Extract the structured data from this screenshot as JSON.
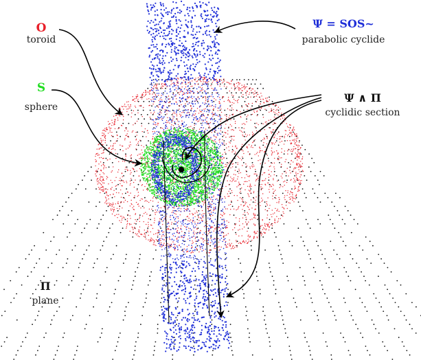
{
  "labels": {
    "toroid_symbol": "O",
    "toroid_name": "toroid",
    "sphere_symbol": "S",
    "sphere_name": "sphere",
    "cyclide_symbol": "Ψ = SOS~",
    "cyclide_name": "parabolic cyclide",
    "section_symbol": "Ψ ∧ Π",
    "section_name": "cyclidic section",
    "plane_symbol": "Π",
    "plane_name": "plane"
  },
  "colors": {
    "toroid": "#e8202a",
    "sphere": "#22dd22",
    "cyclide": "#1f2fd8",
    "plane": "#111111",
    "text": "#222222"
  }
}
